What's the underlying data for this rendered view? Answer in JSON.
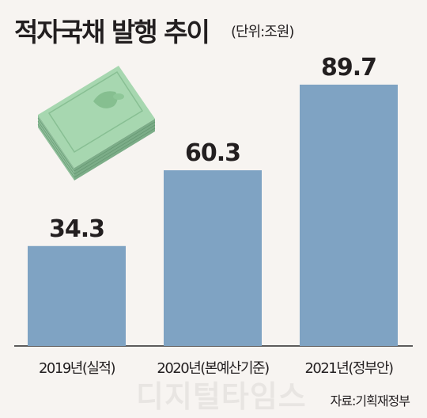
{
  "header": {
    "title": "적자국채 발행 추이",
    "unit": "(단위:조원)"
  },
  "footer": {
    "source": "자료:기획재정부",
    "watermark": "디지털타임스"
  },
  "colors": {
    "bar": "#7fa3c3",
    "text": "#231f20",
    "background": "#f7f4f1",
    "axis": "#2a2a2a"
  },
  "icons": [
    "money-stack-icon"
  ],
  "chart_data": {
    "type": "bar",
    "title": "적자국채 발행 추이",
    "xlabel": "",
    "ylabel": "",
    "unit": "(단위:조원)",
    "categories": [
      "2019년(실적)",
      "2020년(본예산기준)",
      "2021년(정부안)"
    ],
    "values": [
      34.3,
      60.3,
      89.7
    ],
    "value_labels": [
      "34.3",
      "60.3",
      "89.7"
    ],
    "ylim": [
      0,
      100
    ],
    "grid": false,
    "legend": "none"
  }
}
